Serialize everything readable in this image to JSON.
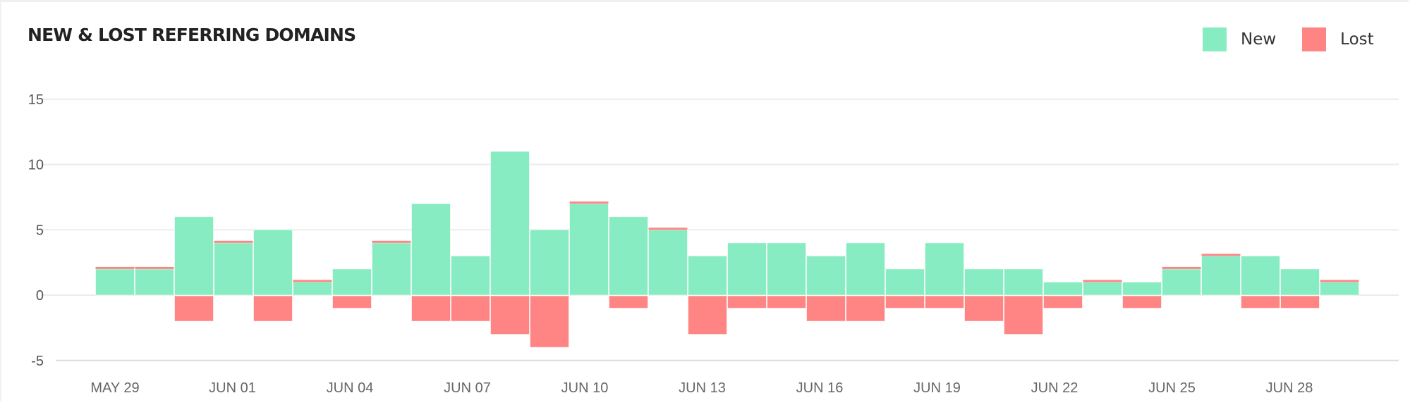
{
  "card": {
    "title": "NEW & LOST REFERRING DOMAINS"
  },
  "legend": [
    {
      "label": "New",
      "color": "#87ecc1"
    },
    {
      "label": "Lost",
      "color": "#ff8585"
    }
  ],
  "colors": {
    "new": "#87ecc1",
    "lost": "#ff8585",
    "grid": "#ececec"
  },
  "chart_data": {
    "type": "bar",
    "title": "NEW & LOST REFERRING DOMAINS",
    "xlabel": "",
    "ylabel": "",
    "ylim": [
      -5,
      15
    ],
    "yticks": [
      15,
      10,
      5,
      0,
      -5
    ],
    "grid": true,
    "legend_position": "top-right",
    "stacked_diverging": true,
    "categories": [
      "May 29",
      "May 30",
      "May 31",
      "Jun 01",
      "Jun 02",
      "Jun 03",
      "Jun 04",
      "Jun 05",
      "Jun 06",
      "Jun 07",
      "Jun 08",
      "Jun 09",
      "Jun 10",
      "Jun 11",
      "Jun 12",
      "Jun 13",
      "Jun 14",
      "Jun 15",
      "Jun 16",
      "Jun 17",
      "Jun 18",
      "Jun 19",
      "Jun 20",
      "Jun 21",
      "Jun 22",
      "Jun 23",
      "Jun 24",
      "Jun 25",
      "Jun 26",
      "Jun 27",
      "Jun 28",
      "Jun 29"
    ],
    "x_tick_labels": [
      {
        "index": 0,
        "label": "MAY 29"
      },
      {
        "index": 3,
        "label": "JUN 01"
      },
      {
        "index": 6,
        "label": "JUN 04"
      },
      {
        "index": 9,
        "label": "JUN 07"
      },
      {
        "index": 12,
        "label": "JUN 10"
      },
      {
        "index": 15,
        "label": "JUN 13"
      },
      {
        "index": 18,
        "label": "JUN 16"
      },
      {
        "index": 21,
        "label": "JUN 19"
      },
      {
        "index": 24,
        "label": "JUN 22"
      },
      {
        "index": 27,
        "label": "JUN 25"
      },
      {
        "index": 30,
        "label": "JUN 28"
      }
    ],
    "series": [
      {
        "name": "New",
        "values": [
          2,
          2,
          6,
          4,
          5,
          1,
          2,
          4,
          7,
          3,
          11,
          5,
          7,
          6,
          5,
          3,
          4,
          4,
          3,
          4,
          2,
          4,
          2,
          2,
          1,
          1,
          1,
          2,
          3,
          3,
          2,
          1
        ]
      },
      {
        "name": "Lost",
        "values": [
          0,
          0,
          -2,
          0,
          -2,
          0,
          -1,
          0,
          -2,
          -2,
          -3,
          -4,
          0,
          -1,
          0,
          -3,
          -1,
          -1,
          -2,
          -2,
          -1,
          -1,
          -2,
          -3,
          -1,
          0,
          -1,
          0,
          0,
          -1,
          -1,
          0
        ]
      }
    ]
  }
}
